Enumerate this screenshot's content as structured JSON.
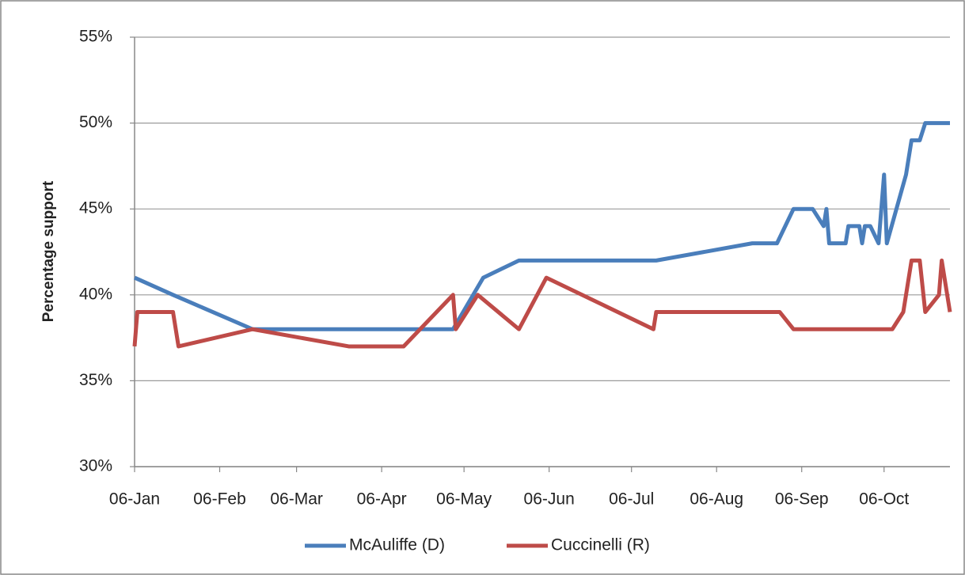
{
  "chart_data": {
    "type": "line",
    "y_label": "Percentage support",
    "xlim": [
      "06-Jan",
      "30-Oct"
    ],
    "xticks": [
      "06-Jan",
      "06-Feb",
      "06-Mar",
      "06-Apr",
      "06-May",
      "06-Jun",
      "06-Jul",
      "06-Aug",
      "06-Sep",
      "06-Oct"
    ],
    "ylim": [
      30,
      55
    ],
    "yticks": [
      {
        "value": 30,
        "label": "30%"
      },
      {
        "value": 35,
        "label": "35%"
      },
      {
        "value": 40,
        "label": "40%"
      },
      {
        "value": 45,
        "label": "45%"
      },
      {
        "value": 50,
        "label": "50%"
      },
      {
        "value": 55,
        "label": "55%"
      }
    ],
    "grid": true,
    "legend": "bottom",
    "series": [
      {
        "name": "McAuliffe (D)",
        "color": "#4a7ebb",
        "x": [
          "06-Jan",
          "20-Jan",
          "18-Feb",
          "02-May",
          "13-May",
          "26-May",
          "15-Jul",
          "19-Aug",
          "28-Aug",
          "03-Sep",
          "10-Sep",
          "14-Sep",
          "15-Sep",
          "16-Sep",
          "22-Sep",
          "23-Sep",
          "27-Sep",
          "28-Sep",
          "29-Sep",
          "01-Oct",
          "04-Oct",
          "06-Oct",
          "07-Oct",
          "14-Oct",
          "16-Oct",
          "19-Oct",
          "21-Oct",
          "30-Oct"
        ],
        "values": [
          41,
          40,
          38,
          38,
          41,
          42,
          42,
          43,
          43,
          45,
          45,
          44,
          45,
          43,
          43,
          44,
          44,
          43,
          44,
          44,
          43,
          47,
          43,
          47,
          49,
          49,
          50,
          50
        ]
      },
      {
        "name": "Cuccinelli (R)",
        "color": "#be4b48",
        "x": [
          "06-Jan",
          "07-Jan",
          "20-Jan",
          "22-Jan",
          "18-Feb",
          "25-Mar",
          "14-Apr",
          "02-May",
          "03-May",
          "11-May",
          "26-May",
          "05-Jun",
          "14-Jul",
          "15-Jul",
          "29-Aug",
          "03-Sep",
          "09-Oct",
          "13-Oct",
          "16-Oct",
          "19-Oct",
          "21-Oct",
          "26-Oct",
          "27-Oct",
          "30-Oct"
        ],
        "values": [
          37,
          39,
          39,
          37,
          38,
          37,
          37,
          40,
          38,
          40,
          38,
          41,
          38,
          39,
          39,
          38,
          38,
          39,
          42,
          42,
          39,
          40,
          42,
          39
        ]
      }
    ]
  }
}
